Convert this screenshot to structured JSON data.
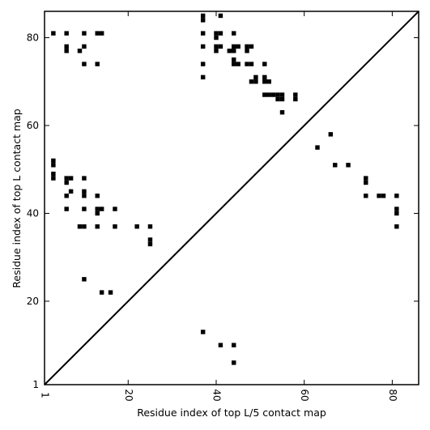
{
  "chart_data": {
    "type": "scatter",
    "xlabel": "Residue index of top L/5 contact map",
    "ylabel": "Residue index of top L contact map",
    "xlim": [
      1,
      86
    ],
    "ylim": [
      1,
      86
    ],
    "xticks": [
      1,
      20,
      40,
      60,
      80
    ],
    "yticks": [
      1,
      20,
      40,
      60,
      80
    ],
    "xtick_labels": [
      "1",
      "20",
      "40",
      "60",
      "80"
    ],
    "ytick_labels": [
      "1",
      "20",
      "40",
      "60",
      "80"
    ],
    "marker": "square",
    "color": "#000000",
    "diagonal": true,
    "series": [
      {
        "points": [
          [
            37,
            13
          ],
          [
            41,
            10
          ],
          [
            44,
            10
          ],
          [
            44,
            6
          ],
          [
            10,
            25
          ],
          [
            14,
            22
          ],
          [
            16,
            22
          ],
          [
            9,
            37
          ],
          [
            10,
            37
          ],
          [
            13,
            37
          ],
          [
            17,
            37
          ],
          [
            22,
            37
          ],
          [
            25,
            37
          ],
          [
            25,
            34
          ],
          [
            25,
            33
          ],
          [
            6,
            41
          ],
          [
            10,
            41
          ],
          [
            13,
            41
          ],
          [
            14,
            41
          ],
          [
            17,
            41
          ],
          [
            13,
            40
          ],
          [
            6,
            44
          ],
          [
            10,
            44
          ],
          [
            13,
            44
          ],
          [
            7,
            45
          ],
          [
            10,
            45
          ],
          [
            6,
            47
          ],
          [
            7,
            48
          ],
          [
            6,
            48
          ],
          [
            10,
            48
          ],
          [
            3,
            48
          ],
          [
            3,
            49
          ],
          [
            3,
            51
          ],
          [
            3,
            52
          ],
          [
            3,
            81
          ],
          [
            6,
            81
          ],
          [
            10,
            81
          ],
          [
            13,
            81
          ],
          [
            14,
            81
          ],
          [
            6,
            78
          ],
          [
            6,
            77
          ],
          [
            9,
            77
          ],
          [
            10,
            78
          ],
          [
            10,
            74
          ],
          [
            13,
            74
          ],
          [
            37,
            85
          ],
          [
            37,
            84
          ],
          [
            41,
            85
          ],
          [
            37,
            81
          ],
          [
            40,
            81
          ],
          [
            41,
            81
          ],
          [
            44,
            81
          ],
          [
            40,
            80
          ],
          [
            37,
            78
          ],
          [
            40,
            78
          ],
          [
            41,
            78
          ],
          [
            40,
            77
          ],
          [
            43,
            77
          ],
          [
            44,
            77
          ],
          [
            44,
            78
          ],
          [
            45,
            78
          ],
          [
            47,
            78
          ],
          [
            48,
            78
          ],
          [
            47,
            77
          ],
          [
            37,
            74
          ],
          [
            44,
            75
          ],
          [
            44,
            74
          ],
          [
            45,
            74
          ],
          [
            47,
            74
          ],
          [
            48,
            74
          ],
          [
            51,
            74
          ],
          [
            37,
            71
          ],
          [
            48,
            70
          ],
          [
            49,
            71
          ],
          [
            49,
            70
          ],
          [
            51,
            71
          ],
          [
            51,
            70
          ],
          [
            52,
            70
          ],
          [
            51,
            67
          ],
          [
            52,
            67
          ],
          [
            53,
            67
          ],
          [
            54,
            67
          ],
          [
            55,
            67
          ],
          [
            54,
            66
          ],
          [
            55,
            66
          ],
          [
            58,
            67
          ],
          [
            58,
            66
          ],
          [
            55,
            63
          ],
          [
            66,
            58
          ],
          [
            63,
            55
          ],
          [
            67,
            51
          ],
          [
            70,
            51
          ],
          [
            74,
            48
          ],
          [
            74,
            47
          ],
          [
            74,
            44
          ],
          [
            77,
            44
          ],
          [
            78,
            44
          ],
          [
            81,
            44
          ],
          [
            81,
            41
          ],
          [
            81,
            40
          ],
          [
            81,
            37
          ]
        ]
      }
    ]
  }
}
